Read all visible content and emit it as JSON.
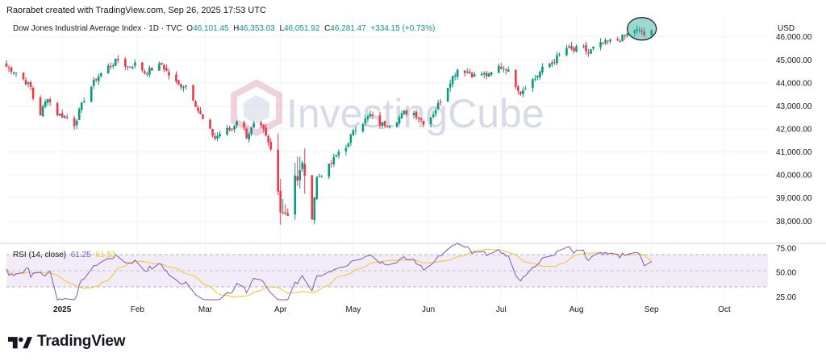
{
  "header": {
    "created_by": "Raorabet created with TradingView.com, Sep 26, 2025 17:53 UTC"
  },
  "legend": {
    "symbol": "Dow Jones Industrial Average Index · 1D · TVC",
    "open_key": "O",
    "open": "46,101.45",
    "high_key": "H",
    "high": "46,353.03",
    "low_key": "L",
    "low": "46,051.92",
    "close_key": "C",
    "close": "46,281.47",
    "change": "+334.15 (+0.73%)"
  },
  "rsi_legend": {
    "label": "RSI (14, close)",
    "rsi_value": "61.25",
    "ma_value": "61.53"
  },
  "currency": "USD",
  "watermark": "InvestingCube",
  "footer": {
    "brand": "TradingView"
  },
  "colors": {
    "up": "#089981",
    "down": "#f23645",
    "rsi": "#7e57c2",
    "rsi_ma": "#f7c325",
    "rsi_band": "#ede7f6",
    "highlight": "#26a69a",
    "grid": "#f0f3fa"
  },
  "chart_data": [
    {
      "type": "candlestick",
      "title": "Dow Jones Industrial Average Index · 1D · TVC",
      "y_ticks": [
        "46,000.00",
        "45,000.00",
        "44,000.00",
        "43,000.00",
        "42,000.00",
        "41,000.00",
        "40,000.00",
        "39,000.00",
        "38,000.00"
      ],
      "y_tick_values": [
        46000,
        45000,
        44000,
        43000,
        42000,
        41000,
        40000,
        39000,
        38000
      ],
      "ylim": [
        37100,
        46900
      ],
      "x_ticks": [
        {
          "label": "2025",
          "bold": true
        },
        {
          "label": "Feb",
          "bold": false
        },
        {
          "label": "Mar",
          "bold": false
        },
        {
          "label": "Apr",
          "bold": false
        },
        {
          "label": "May",
          "bold": false
        },
        {
          "label": "Jun",
          "bold": false
        },
        {
          "label": "Jul",
          "bold": false
        },
        {
          "label": "Aug",
          "bold": false
        },
        {
          "label": "Sep",
          "bold": false
        },
        {
          "label": "Oct",
          "bold": false
        }
      ],
      "x_tick_days": [
        23,
        54,
        82,
        113,
        143,
        174,
        204,
        235,
        266,
        296
      ],
      "x_range_days": [
        0,
        314
      ],
      "anchor_closes": [
        [
          0,
          44700
        ],
        [
          5,
          44400
        ],
        [
          10,
          43800
        ],
        [
          13,
          42400
        ],
        [
          17,
          43400
        ],
        [
          20,
          42700
        ],
        [
          25,
          42500
        ],
        [
          28,
          42200
        ],
        [
          32,
          43300
        ],
        [
          37,
          44200
        ],
        [
          42,
          44700
        ],
        [
          46,
          45000
        ],
        [
          50,
          44700
        ],
        [
          54,
          44850
        ],
        [
          57,
          44450
        ],
        [
          60,
          44600
        ],
        [
          64,
          44800
        ],
        [
          68,
          44200
        ],
        [
          71,
          43900
        ],
        [
          75,
          43900
        ],
        [
          79,
          42800
        ],
        [
          82,
          42200
        ],
        [
          86,
          41600
        ],
        [
          89,
          41900
        ],
        [
          93,
          42000
        ],
        [
          96,
          42600
        ],
        [
          99,
          41700
        ],
        [
          103,
          42300
        ],
        [
          106,
          41900
        ],
        [
          110,
          40800
        ],
        [
          113,
          38500
        ],
        [
          116,
          38300
        ],
        [
          118,
          40300
        ],
        [
          120,
          39700
        ],
        [
          122,
          40600
        ],
        [
          124,
          39100
        ],
        [
          126,
          38200
        ],
        [
          128,
          39900
        ],
        [
          131,
          40100
        ],
        [
          134,
          40500
        ],
        [
          138,
          41200
        ],
        [
          141,
          41300
        ],
        [
          143,
          42000
        ],
        [
          147,
          42300
        ],
        [
          150,
          42600
        ],
        [
          153,
          42200
        ],
        [
          157,
          42200
        ],
        [
          160,
          42300
        ],
        [
          164,
          42700
        ],
        [
          167,
          42800
        ],
        [
          170,
          42500
        ],
        [
          173,
          42200
        ],
        [
          176,
          42700
        ],
        [
          180,
          43400
        ],
        [
          183,
          44100
        ],
        [
          186,
          44600
        ],
        [
          190,
          44500
        ],
        [
          193,
          44300
        ],
        [
          196,
          44400
        ],
        [
          199,
          44300
        ],
        [
          203,
          44700
        ],
        [
          206,
          44650
        ],
        [
          209,
          44100
        ],
        [
          212,
          43600
        ],
        [
          215,
          44000
        ],
        [
          218,
          44200
        ],
        [
          221,
          44600
        ],
        [
          225,
          44900
        ],
        [
          228,
          45200
        ],
        [
          231,
          45500
        ],
        [
          234,
          45400
        ],
        [
          237,
          45600
        ],
        [
          240,
          45300
        ],
        [
          243,
          45600
        ],
        [
          246,
          45700
        ],
        [
          249,
          45800
        ],
        [
          253,
          45900
        ],
        [
          256,
          46100
        ],
        [
          259,
          46300
        ],
        [
          262,
          46200
        ],
        [
          264,
          45950
        ],
        [
          266,
          46280
        ]
      ],
      "rsi": {
        "name": "RSI (14, close)",
        "y_ticks": [
          "75.00",
          "50.00",
          "25.00"
        ],
        "y_tick_values": [
          75,
          50,
          25
        ],
        "band": [
          30,
          70
        ],
        "ylim": [
          22,
          80
        ],
        "last_rsi": 61.25,
        "last_ma": 61.53
      }
    }
  ]
}
